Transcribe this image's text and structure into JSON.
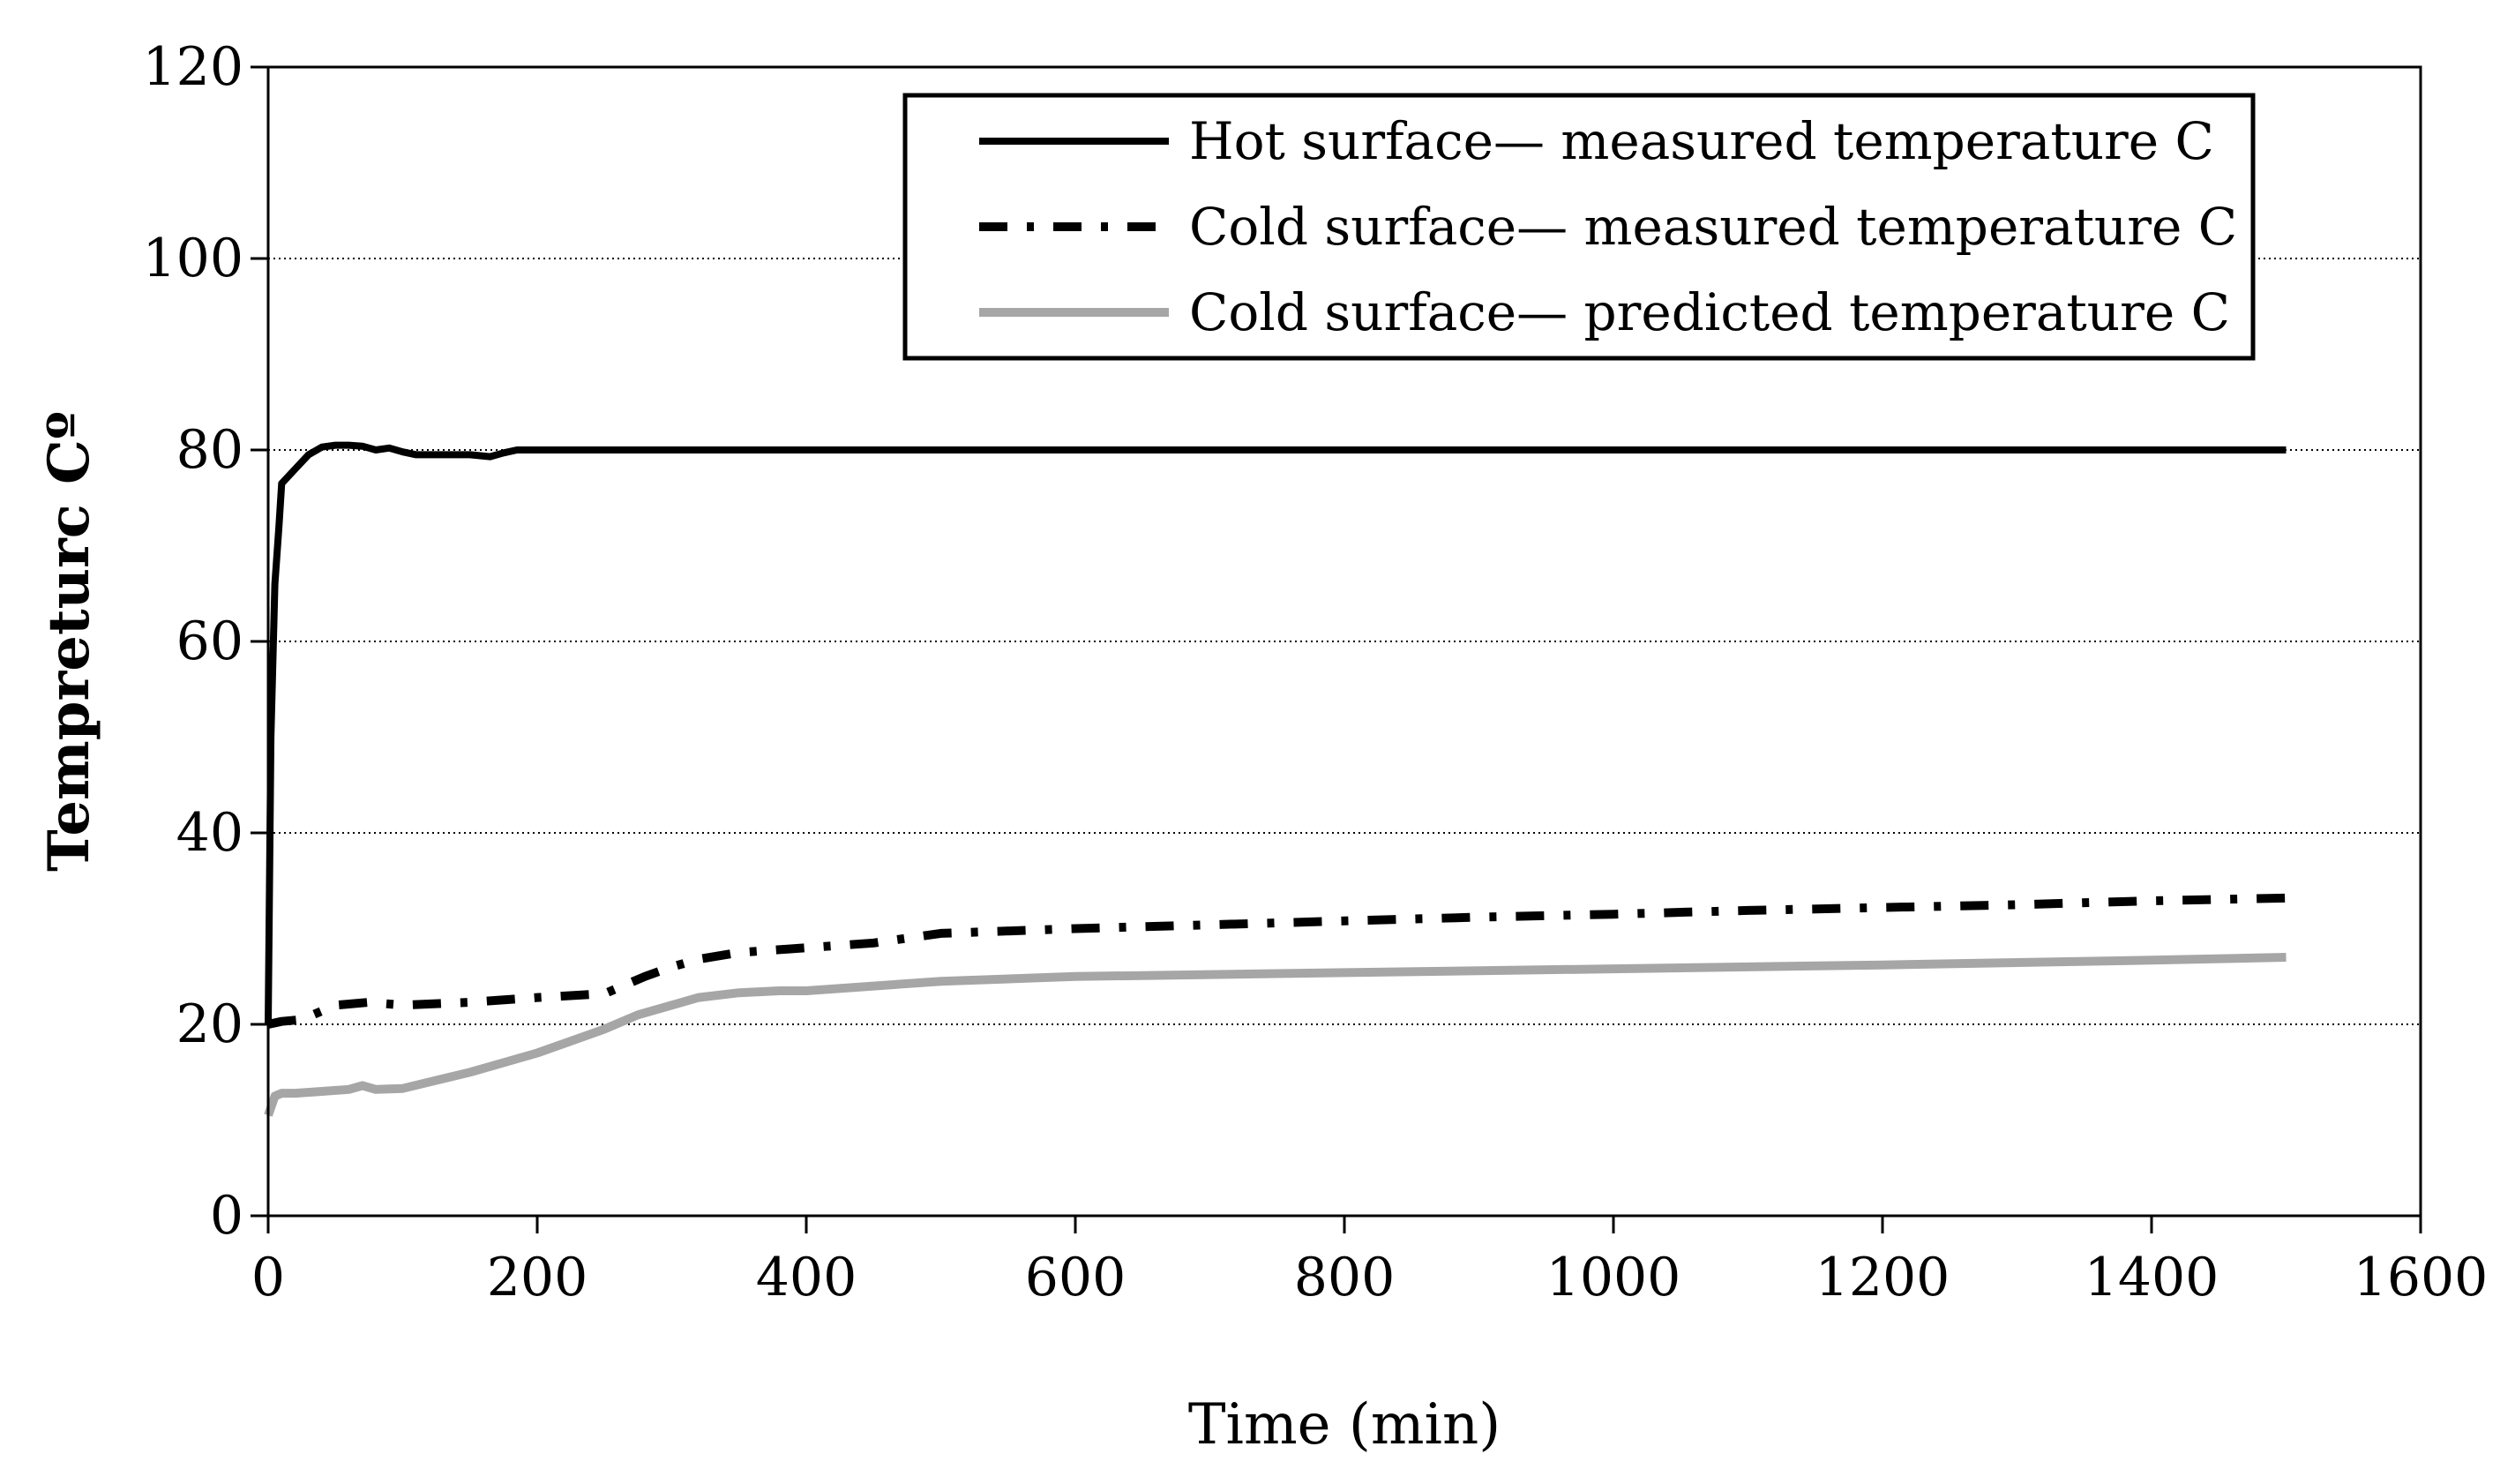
{
  "chart_data": {
    "type": "line",
    "title": "",
    "xlabel": "Time (min)",
    "ylabel": "Tempreturc Cº",
    "xlim": [
      0,
      1600
    ],
    "ylim": [
      0,
      120
    ],
    "xticks": [
      0,
      200,
      400,
      600,
      800,
      1000,
      1200,
      1400,
      1600
    ],
    "yticks": [
      0,
      20,
      40,
      60,
      80,
      100,
      120
    ],
    "grid": "horizontal-dotted",
    "legend_position": "top-right",
    "series": [
      {
        "name": "Hot surface— measured temperature C",
        "color": "#000000",
        "style": "solid",
        "x": [
          0,
          2,
          5,
          8,
          10,
          20,
          30,
          40,
          50,
          60,
          70,
          80,
          90,
          100,
          110,
          130,
          150,
          165,
          175,
          185,
          200,
          300,
          500,
          800,
          1000,
          1200,
          1500
        ],
        "y": [
          20,
          50,
          66,
          72,
          76.5,
          78,
          79.5,
          80.3,
          80.5,
          80.5,
          80.4,
          80,
          80.2,
          79.8,
          79.5,
          79.5,
          79.5,
          79.3,
          79.7,
          80,
          80,
          80,
          80,
          80,
          80,
          80,
          80
        ]
      },
      {
        "name": "Cold surface— measured temperature C",
        "color": "#000000",
        "style": "dash-dot",
        "x": [
          0,
          10,
          25,
          50,
          75,
          100,
          150,
          200,
          250,
          280,
          300,
          320,
          350,
          400,
          450,
          500,
          600,
          700,
          800,
          900,
          1000,
          1100,
          1200,
          1300,
          1400,
          1500
        ],
        "y": [
          20,
          20.3,
          20.5,
          22,
          22.3,
          22,
          22.3,
          22.8,
          23.2,
          25,
          26,
          26.8,
          27.5,
          28,
          28.5,
          29.5,
          30,
          30.4,
          30.8,
          31.2,
          31.5,
          31.9,
          32.2,
          32.5,
          32.9,
          33.2
        ]
      },
      {
        "name": "Cold surface— predicted temperature C",
        "color": "#a6a6a6",
        "style": "solid",
        "x": [
          0,
          5,
          10,
          20,
          40,
          60,
          70,
          80,
          100,
          150,
          200,
          250,
          275,
          300,
          320,
          350,
          380,
          400,
          450,
          500,
          600,
          800,
          1000,
          1200,
          1400,
          1500
        ],
        "y": [
          10.5,
          12.5,
          12.8,
          12.8,
          13,
          13.2,
          13.6,
          13.2,
          13.3,
          15,
          17,
          19.5,
          21,
          22,
          22.8,
          23.3,
          23.5,
          23.5,
          24,
          24.5,
          25,
          25.4,
          25.8,
          26.2,
          26.7,
          27
        ]
      }
    ]
  }
}
